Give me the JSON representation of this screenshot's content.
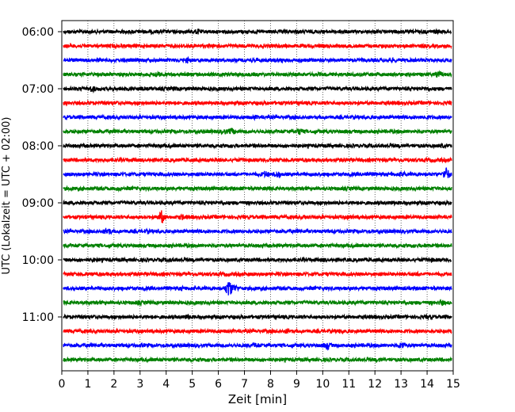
{
  "chart_data": {
    "type": "line",
    "title": "",
    "xlabel": "Zeit  [min]",
    "ylabel": "UTC (Lokalzeit = UTC + 02:00)",
    "xlim": [
      0,
      15
    ],
    "x_ticks": [
      "0",
      "1",
      "2",
      "3",
      "4",
      "5",
      "6",
      "7",
      "8",
      "9",
      "10",
      "11",
      "12",
      "13",
      "14",
      "15"
    ],
    "y_ticks": [
      "06:00",
      "07:00",
      "08:00",
      "09:00",
      "10:00",
      "11:00"
    ],
    "grid": "vertical dotted at each minute",
    "trace_interval_minutes": 15,
    "color_cycle": [
      "#000000",
      "#ff0000",
      "#0000ff",
      "#008000"
    ],
    "series": [
      {
        "start": "06:00",
        "color": "black",
        "events": [
          {
            "t": 5.2,
            "amp": 4
          },
          {
            "t": 14.4,
            "amp": 3
          }
        ]
      },
      {
        "start": "06:15",
        "color": "red",
        "events": [
          {
            "t": 4.0,
            "amp": 2
          },
          {
            "t": 11.4,
            "amp": 2
          }
        ]
      },
      {
        "start": "06:30",
        "color": "blue",
        "events": [
          {
            "t": 4.8,
            "amp": 4
          },
          {
            "t": 12.7,
            "amp": 3
          }
        ]
      },
      {
        "start": "06:45",
        "color": "green",
        "events": [
          {
            "t": 3.6,
            "amp": 4
          },
          {
            "t": 14.5,
            "amp": 5
          }
        ]
      },
      {
        "start": "07:00",
        "color": "black",
        "events": [
          {
            "t": 1.1,
            "amp": 5
          },
          {
            "t": 4.3,
            "amp": 3
          },
          {
            "t": 14.0,
            "amp": 3
          }
        ]
      },
      {
        "start": "07:15",
        "color": "red",
        "events": [
          {
            "t": 1.5,
            "amp": 2
          }
        ]
      },
      {
        "start": "07:30",
        "color": "blue",
        "events": [
          {
            "t": 7.4,
            "amp": 3
          },
          {
            "t": 14.0,
            "amp": 3
          }
        ]
      },
      {
        "start": "07:45",
        "color": "green",
        "events": [
          {
            "t": 6.2,
            "amp": 4
          },
          {
            "t": 6.5,
            "amp": 5
          },
          {
            "t": 9.1,
            "amp": 5
          }
        ]
      },
      {
        "start": "08:00",
        "color": "black",
        "events": [
          {
            "t": 3.8,
            "amp": 2
          },
          {
            "t": 14.6,
            "amp": 3
          }
        ]
      },
      {
        "start": "08:15",
        "color": "red",
        "events": [
          {
            "t": 1.5,
            "amp": 2
          }
        ]
      },
      {
        "start": "08:30",
        "color": "blue",
        "events": [
          {
            "t": 7.8,
            "amp": 5
          },
          {
            "t": 8.3,
            "amp": 5
          },
          {
            "t": 11.7,
            "amp": 4
          },
          {
            "t": 13.1,
            "amp": 4
          },
          {
            "t": 14.8,
            "amp": 9
          }
        ]
      },
      {
        "start": "08:45",
        "color": "green",
        "events": [
          {
            "t": 2.2,
            "amp": 3
          }
        ]
      },
      {
        "start": "09:00",
        "color": "black",
        "events": [
          {
            "t": 12.7,
            "amp": 3
          }
        ]
      },
      {
        "start": "09:15",
        "color": "red",
        "events": [
          {
            "t": 3.8,
            "amp": 9
          },
          {
            "t": 4.6,
            "amp": 4
          },
          {
            "t": 9.3,
            "amp": 3
          },
          {
            "t": 11.1,
            "amp": 3
          }
        ]
      },
      {
        "start": "09:30",
        "color": "blue",
        "events": [
          {
            "t": 1.7,
            "amp": 6
          },
          {
            "t": 3.2,
            "amp": 3
          }
        ]
      },
      {
        "start": "09:45",
        "color": "green",
        "events": [
          {
            "t": 14.0,
            "amp": 3
          }
        ]
      },
      {
        "start": "10:00",
        "color": "black",
        "events": [
          {
            "t": 1.2,
            "amp": 3
          },
          {
            "t": 4.1,
            "amp": 3
          },
          {
            "t": 10.0,
            "amp": 3
          },
          {
            "t": 14.2,
            "amp": 3
          }
        ]
      },
      {
        "start": "10:15",
        "color": "red",
        "events": [
          {
            "t": 13.6,
            "amp": 3
          }
        ]
      },
      {
        "start": "10:30",
        "color": "blue",
        "events": [
          {
            "t": 6.4,
            "amp": 12
          },
          {
            "t": 6.6,
            "amp": 6
          },
          {
            "t": 4.6,
            "amp": 3
          }
        ]
      },
      {
        "start": "10:45",
        "color": "green",
        "events": [
          {
            "t": 14.6,
            "amp": 4
          },
          {
            "t": 2.9,
            "amp": 3
          }
        ]
      },
      {
        "start": "11:00",
        "color": "black",
        "events": [
          {
            "t": 4.8,
            "amp": 4
          },
          {
            "t": 14.1,
            "amp": 3
          }
        ]
      },
      {
        "start": "11:15",
        "color": "red",
        "events": [
          {
            "t": 8.7,
            "amp": 4
          },
          {
            "t": 10.7,
            "amp": 3
          }
        ]
      },
      {
        "start": "11:30",
        "color": "blue",
        "events": [
          {
            "t": 3.0,
            "amp": 3
          },
          {
            "t": 7.4,
            "amp": 4
          },
          {
            "t": 10.2,
            "amp": 6
          },
          {
            "t": 13.1,
            "amp": 5
          }
        ]
      },
      {
        "start": "11:45",
        "color": "green",
        "events": [
          {
            "t": 12.2,
            "amp": 3
          }
        ]
      }
    ]
  }
}
